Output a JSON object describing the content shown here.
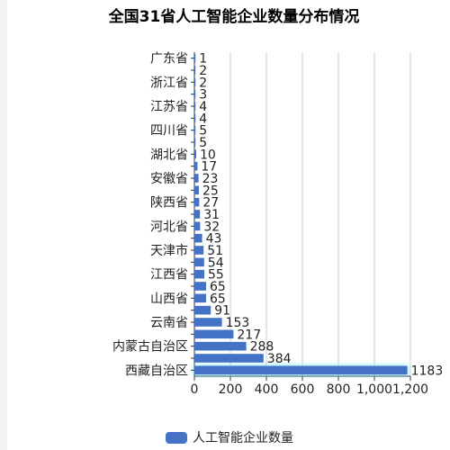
{
  "chart_data": {
    "type": "bar",
    "orientation": "horizontal",
    "title": "全国31省人工智能企业数量分布情况",
    "categories": [
      "西藏自治区",
      "",
      "内蒙古自治区",
      "",
      "云南省",
      "",
      "山西省",
      "",
      "江西省",
      "",
      "天津市",
      "",
      "河北省",
      "",
      "陕西省",
      "",
      "安徽省",
      "",
      "湖北省",
      "",
      "四川省",
      "",
      "江苏省",
      "",
      "浙江省",
      "",
      "广东省"
    ],
    "series": [
      {
        "name": "人工智能企业数量",
        "values": [
          1183,
          384,
          288,
          217,
          153,
          91,
          65,
          65,
          55,
          54,
          51,
          43,
          32,
          31,
          27,
          25,
          23,
          17,
          10,
          5,
          5,
          4,
          4,
          3,
          2,
          2,
          1
        ],
        "color": "#4472c4"
      }
    ],
    "xlim": [
      0,
      1200
    ],
    "xticks": [
      "0",
      "200",
      "400",
      "600",
      "800",
      "1,000",
      "1,200"
    ],
    "xtick_values": [
      0,
      200,
      400,
      600,
      800,
      1000,
      1200
    ],
    "grid": true,
    "legend_position": "bottom",
    "highlight_category": "西藏自治区"
  }
}
